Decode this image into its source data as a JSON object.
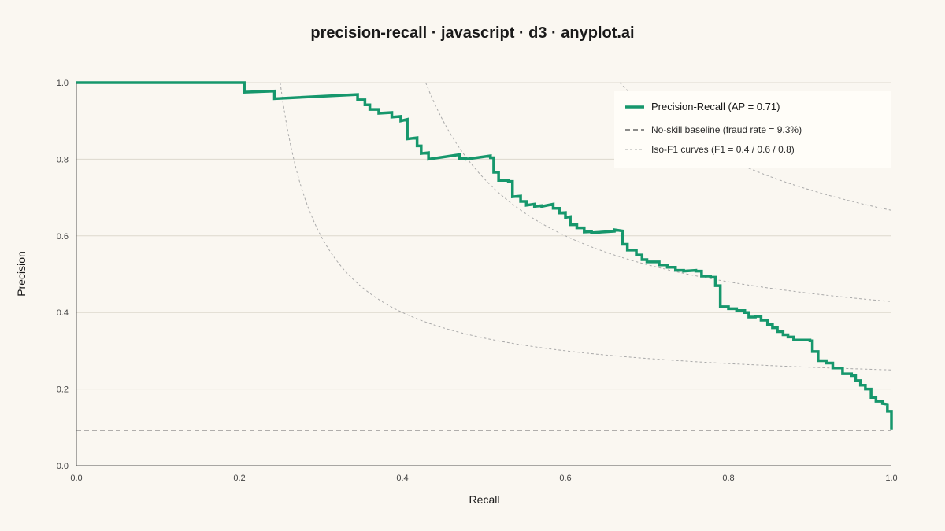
{
  "chart_data": {
    "type": "line",
    "title": "precision-recall · javascript · d3 · anyplot.ai",
    "xlabel": "Recall",
    "ylabel": "Precision",
    "xlim": [
      0,
      1
    ],
    "ylim": [
      0,
      1
    ],
    "x_ticks": [
      "0.0",
      "0.2",
      "0.4",
      "0.6",
      "0.8",
      "1.0"
    ],
    "y_ticks": [
      "0.0",
      "0.2",
      "0.4",
      "0.6",
      "0.8",
      "1.0"
    ],
    "grid": "horizontal",
    "legend_position": "top-right",
    "legend": {
      "pr_label": "Precision-Recall (AP = 0.71)",
      "baseline_label": "No-skill baseline (fraud rate = 9.3%)",
      "isof1_label": "Iso-F1 curves (F1 = 0.4 / 0.6 / 0.8)"
    },
    "colors": {
      "pr": "#16976C",
      "baseline": "#666666",
      "isof1": "#AAAAAA",
      "grid": "#DDD8CE",
      "axis": "#555555"
    },
    "baseline": 0.093,
    "iso_f1": [
      0.4,
      0.6,
      0.8
    ],
    "series": [
      {
        "name": "Precision-Recall (AP = 0.71)",
        "points": [
          [
            0.0,
            1.0
          ],
          [
            0.206,
            1.0
          ],
          [
            0.206,
            0.975
          ],
          [
            0.243,
            0.978
          ],
          [
            0.243,
            0.958
          ],
          [
            0.345,
            0.969
          ],
          [
            0.345,
            0.955
          ],
          [
            0.354,
            0.955
          ],
          [
            0.354,
            0.942
          ],
          [
            0.36,
            0.942
          ],
          [
            0.36,
            0.93
          ],
          [
            0.371,
            0.93
          ],
          [
            0.371,
            0.92
          ],
          [
            0.387,
            0.922
          ],
          [
            0.387,
            0.91
          ],
          [
            0.398,
            0.912
          ],
          [
            0.398,
            0.9
          ],
          [
            0.406,
            0.904
          ],
          [
            0.406,
            0.853
          ],
          [
            0.418,
            0.856
          ],
          [
            0.418,
            0.835
          ],
          [
            0.423,
            0.835
          ],
          [
            0.423,
            0.815
          ],
          [
            0.432,
            0.817
          ],
          [
            0.432,
            0.8
          ],
          [
            0.47,
            0.812
          ],
          [
            0.47,
            0.802
          ],
          [
            0.478,
            0.802
          ],
          [
            0.478,
            0.8
          ],
          [
            0.508,
            0.809
          ],
          [
            0.508,
            0.804
          ],
          [
            0.512,
            0.804
          ],
          [
            0.512,
            0.766
          ],
          [
            0.518,
            0.766
          ],
          [
            0.518,
            0.745
          ],
          [
            0.53,
            0.745
          ],
          [
            0.53,
            0.742
          ],
          [
            0.535,
            0.742
          ],
          [
            0.535,
            0.702
          ],
          [
            0.545,
            0.704
          ],
          [
            0.545,
            0.69
          ],
          [
            0.552,
            0.69
          ],
          [
            0.552,
            0.68
          ],
          [
            0.562,
            0.683
          ],
          [
            0.562,
            0.677
          ],
          [
            0.571,
            0.679
          ],
          [
            0.571,
            0.677
          ],
          [
            0.585,
            0.683
          ],
          [
            0.585,
            0.672
          ],
          [
            0.593,
            0.672
          ],
          [
            0.593,
            0.66
          ],
          [
            0.6,
            0.661
          ],
          [
            0.6,
            0.648
          ],
          [
            0.606,
            0.65
          ],
          [
            0.606,
            0.629
          ],
          [
            0.614,
            0.629
          ],
          [
            0.614,
            0.621
          ],
          [
            0.623,
            0.621
          ],
          [
            0.623,
            0.61
          ],
          [
            0.632,
            0.611
          ],
          [
            0.632,
            0.608
          ],
          [
            0.66,
            0.612
          ],
          [
            0.66,
            0.616
          ],
          [
            0.67,
            0.613
          ],
          [
            0.67,
            0.578
          ],
          [
            0.676,
            0.578
          ],
          [
            0.676,
            0.563
          ],
          [
            0.687,
            0.563
          ],
          [
            0.687,
            0.55
          ],
          [
            0.694,
            0.55
          ],
          [
            0.694,
            0.538
          ],
          [
            0.7,
            0.538
          ],
          [
            0.7,
            0.532
          ],
          [
            0.715,
            0.532
          ],
          [
            0.715,
            0.524
          ],
          [
            0.725,
            0.524
          ],
          [
            0.725,
            0.518
          ],
          [
            0.735,
            0.518
          ],
          [
            0.735,
            0.51
          ],
          [
            0.745,
            0.51
          ],
          [
            0.745,
            0.508
          ],
          [
            0.76,
            0.51
          ],
          [
            0.76,
            0.508
          ],
          [
            0.767,
            0.508
          ],
          [
            0.767,
            0.495
          ],
          [
            0.778,
            0.495
          ],
          [
            0.778,
            0.492
          ],
          [
            0.784,
            0.492
          ],
          [
            0.784,
            0.47
          ],
          [
            0.79,
            0.47
          ],
          [
            0.79,
            0.415
          ],
          [
            0.8,
            0.415
          ],
          [
            0.8,
            0.41
          ],
          [
            0.81,
            0.41
          ],
          [
            0.81,
            0.405
          ],
          [
            0.82,
            0.405
          ],
          [
            0.82,
            0.4
          ],
          [
            0.825,
            0.4
          ],
          [
            0.825,
            0.388
          ],
          [
            0.833,
            0.388
          ],
          [
            0.833,
            0.39
          ],
          [
            0.84,
            0.39
          ],
          [
            0.84,
            0.38
          ],
          [
            0.848,
            0.38
          ],
          [
            0.848,
            0.368
          ],
          [
            0.854,
            0.368
          ],
          [
            0.854,
            0.36
          ],
          [
            0.86,
            0.36
          ],
          [
            0.86,
            0.35
          ],
          [
            0.867,
            0.35
          ],
          [
            0.867,
            0.342
          ],
          [
            0.873,
            0.342
          ],
          [
            0.873,
            0.336
          ],
          [
            0.88,
            0.336
          ],
          [
            0.88,
            0.328
          ],
          [
            0.9,
            0.328
          ],
          [
            0.9,
            0.326
          ],
          [
            0.903,
            0.326
          ],
          [
            0.903,
            0.298
          ],
          [
            0.91,
            0.298
          ],
          [
            0.91,
            0.274
          ],
          [
            0.92,
            0.274
          ],
          [
            0.92,
            0.268
          ],
          [
            0.928,
            0.268
          ],
          [
            0.928,
            0.255
          ],
          [
            0.94,
            0.255
          ],
          [
            0.94,
            0.24
          ],
          [
            0.951,
            0.24
          ],
          [
            0.951,
            0.235
          ],
          [
            0.956,
            0.235
          ],
          [
            0.956,
            0.222
          ],
          [
            0.962,
            0.222
          ],
          [
            0.962,
            0.21
          ],
          [
            0.968,
            0.21
          ],
          [
            0.968,
            0.2
          ],
          [
            0.975,
            0.2
          ],
          [
            0.975,
            0.178
          ],
          [
            0.981,
            0.178
          ],
          [
            0.981,
            0.168
          ],
          [
            0.989,
            0.168
          ],
          [
            0.989,
            0.162
          ],
          [
            0.995,
            0.16
          ],
          [
            0.995,
            0.142
          ],
          [
            1.0,
            0.142
          ],
          [
            1.0,
            0.095
          ]
        ]
      },
      {
        "name": "No-skill baseline (fraud rate = 9.3%)",
        "points": [
          [
            0.0,
            0.093
          ],
          [
            1.0,
            0.093
          ]
        ]
      },
      {
        "name": "Iso-F1 curves (F1 = 0.4 / 0.6 / 0.8)",
        "f1_values": [
          0.4,
          0.6,
          0.8
        ]
      }
    ]
  }
}
